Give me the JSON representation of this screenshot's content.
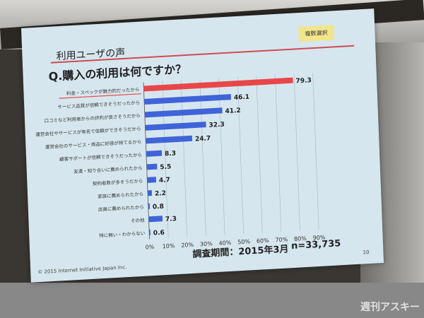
{
  "slide": {
    "section_title": "利用ユーザの声",
    "question": "Q.購入の利用は何ですか？",
    "badge": "複数選択",
    "survey_period": "調査期間：2015年3月",
    "sample_size": "n=33,735",
    "copyright": "© 2015  Internet Initiative Japan Inc.",
    "page_number": "10",
    "watermark": "週刊アスキー"
  },
  "chart_data": {
    "type": "bar",
    "orientation": "horizontal",
    "categories": [
      "料金・スペックが魅力的だったから",
      "サービス品質が信頼できそうだったから",
      "口コミなど利用者からの評判が良さそうだから",
      "運営会社やサービスが有名で信頼ができそうだから",
      "運営会社のサービス・商品に好感が持てるから",
      "顧客サポートが信頼できそうだったから",
      "友達・知り合いに薦められたから",
      "契約者数が多そうだから",
      "家族に薦められたから",
      "店員に薦められたから",
      "その他",
      "特に無い・わからない"
    ],
    "values": [
      79.3,
      46.1,
      41.2,
      32.3,
      24.7,
      8.3,
      5.5,
      4.7,
      2.2,
      0.8,
      7.3,
      0.6
    ],
    "value_labels": [
      "79.3",
      "46.1",
      "41.2",
      "32.3",
      "24.7",
      "8.3",
      "5.5",
      "4.7",
      "2.2",
      "0.8",
      "7.3",
      "0.6"
    ],
    "xlim": [
      0,
      90
    ],
    "x_ticks": [
      "0%",
      "10%",
      "20%",
      "30%",
      "40%",
      "50%",
      "60%",
      "70%",
      "80%",
      "90%"
    ],
    "grid": true,
    "colors": {
      "highlight": "#e8474a",
      "bar": "#3f63d8"
    }
  }
}
